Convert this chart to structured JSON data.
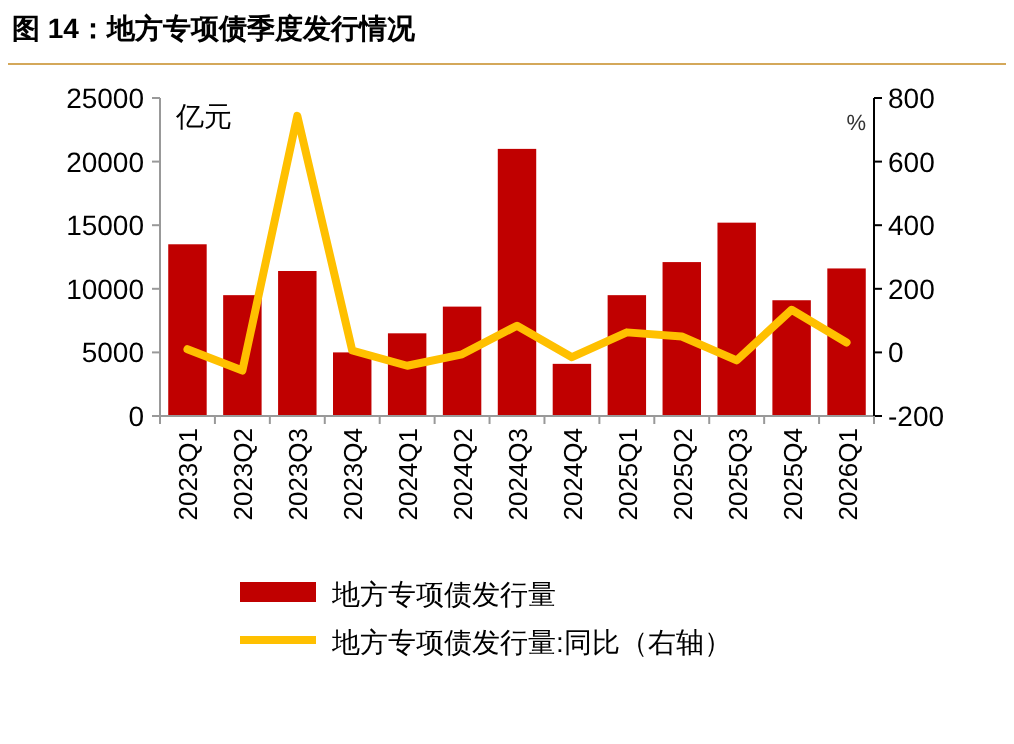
{
  "chart_data": {
    "type": "bar",
    "title": "图 14：地方专项债季度发行情况",
    "ylabel": "亿元",
    "y2label": "%",
    "categories": [
      "2023Q1",
      "2023Q2",
      "2023Q3",
      "2023Q4",
      "2024Q1",
      "2024Q2",
      "2024Q3",
      "2024Q4",
      "2025Q1",
      "2025Q2",
      "2025Q3",
      "2025Q4",
      "2026Q1"
    ],
    "series": [
      {
        "name": "地方专项债发行量",
        "color": "#c00000",
        "values": [
          13500,
          9500,
          11400,
          5000,
          6500,
          8600,
          21000,
          4100,
          9500,
          12100,
          15200,
          9100,
          11600
        ]
      },
      {
        "name": "地方专项债发行量:同比（右轴）",
        "type": "line",
        "axis": "y2",
        "color": "#ffc000",
        "values": [
          10,
          -57,
          744,
          6,
          -42,
          -6,
          84,
          -15,
          63,
          50,
          -25,
          134,
          31
        ]
      }
    ],
    "ylim": [
      0,
      25000
    ],
    "yticks": [
      0,
      5000,
      10000,
      15000,
      20000,
      25000
    ],
    "y2lim": [
      -200,
      800
    ],
    "y2ticks": [
      -200,
      0,
      200,
      400,
      600,
      800
    ],
    "grid": false,
    "legend": "bottom"
  }
}
